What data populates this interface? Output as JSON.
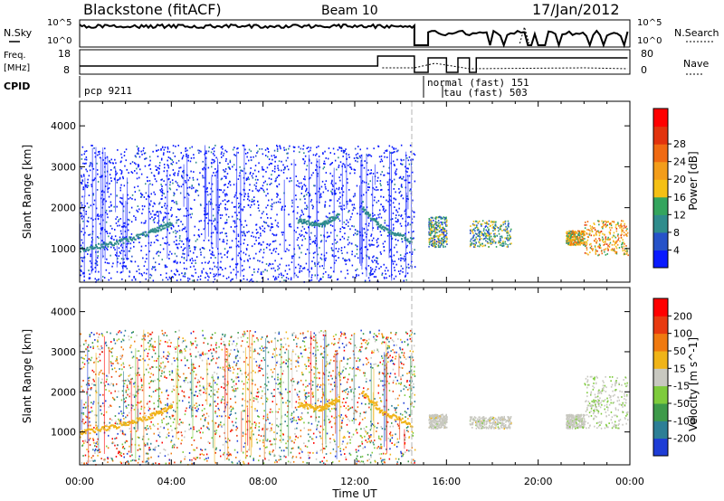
{
  "header": {
    "station": "Blackstone (fitACF)",
    "beam": "Beam 10",
    "date": "17/Jan/2012"
  },
  "params": {
    "nsky_label": "N.Sky",
    "nsky_ticks": [
      "10^5",
      "10^0"
    ],
    "nsearch_label": "N.Search",
    "nsearch_ticks": [
      "10^5",
      "10^0"
    ],
    "freq_label_1": "Freq.",
    "freq_label_2": "[MHz]",
    "freq_ticks": [
      "18",
      "8"
    ],
    "nave_label": "Nave",
    "nave_ticks": [
      "80",
      "0"
    ],
    "cpid_label": "CPID",
    "cpid_entries": [
      "pcp 9211",
      "normal (fast) 151",
      "tau (fast) 503"
    ]
  },
  "axes": {
    "xlabel": "Time UT",
    "x_ticks": [
      "00:00",
      "04:00",
      "08:00",
      "12:00",
      "16:00",
      "20:00",
      "00:00"
    ],
    "ylabel": "Slant Range [km]",
    "y_ticks": [
      "1000",
      "2000",
      "3000",
      "4000"
    ]
  },
  "colorbars": {
    "power": {
      "title": "Power [dB]",
      "labels": [
        "4",
        "8",
        "12",
        "16",
        "20",
        "24",
        "28"
      ],
      "colors": [
        "#0a1bff",
        "#2652c8",
        "#2f8c8c",
        "#34a55e",
        "#f4c015",
        "#f39d1a",
        "#f06a12",
        "#e2330d",
        "#ff0000"
      ]
    },
    "velocity": {
      "title": "Velocity [m s^-1]",
      "labels": [
        "200",
        "100",
        "50",
        "15",
        "-15",
        "-50",
        "-100",
        "-200"
      ],
      "colors": [
        "#1e3dd6",
        "#2d7f96",
        "#3e9a4a",
        "#7ecb3c",
        "#c8c8c0",
        "#f0b418",
        "#f07a10",
        "#e83a10",
        "#ff0000"
      ]
    }
  },
  "chart_data": [
    {
      "type": "heatmap",
      "title": "Power [dB]",
      "xlabel": "Time UT",
      "ylabel": "Slant Range [km]",
      "xlim": [
        0,
        24
      ],
      "ylim": [
        180,
        4600
      ],
      "clim": [
        0,
        30
      ],
      "regions": [
        {
          "t": [
            0.0,
            14.6
          ],
          "r": [
            200,
            3550
          ],
          "value": 4,
          "density": "sparse"
        },
        {
          "t": [
            15.2,
            16.0
          ],
          "r": [
            1050,
            1800
          ],
          "value": 10
        },
        {
          "t": [
            17.0,
            18.8
          ],
          "r": [
            1050,
            1700
          ],
          "value": 10
        },
        {
          "t": [
            21.2,
            22.0
          ],
          "r": [
            1100,
            1450
          ],
          "value": 16
        },
        {
          "t": [
            22.0,
            23.9
          ],
          "r": [
            850,
            1700
          ],
          "value": 18
        }
      ],
      "traces": [
        {
          "t": [
            0.0,
            1.5,
            3.0,
            4.0
          ],
          "r": [
            1000,
            1150,
            1400,
            1650
          ]
        },
        {
          "t": [
            9.5,
            10.5,
            11.3
          ],
          "r": [
            1700,
            1600,
            1850
          ]
        },
        {
          "t": [
            12.3,
            13.2,
            14.5
          ],
          "r": [
            2000,
            1500,
            1200
          ]
        }
      ]
    },
    {
      "type": "heatmap",
      "title": "Velocity [m s^-1]",
      "xlabel": "Time UT",
      "ylabel": "Slant Range [km]",
      "xlim": [
        0,
        24
      ],
      "ylim": [
        180,
        4600
      ],
      "clim": [
        -250,
        250
      ],
      "regions": [
        {
          "t": [
            0.0,
            14.6
          ],
          "r": [
            200,
            3550
          ],
          "value": 0,
          "density": "sparse"
        },
        {
          "t": [
            15.2,
            16.0
          ],
          "r": [
            1100,
            1450
          ],
          "value": 0
        },
        {
          "t": [
            17.0,
            18.8
          ],
          "r": [
            1100,
            1400
          ],
          "value": 0
        },
        {
          "t": [
            21.2,
            22.0
          ],
          "r": [
            1100,
            1450
          ],
          "value": -5
        },
        {
          "t": [
            22.0,
            23.9
          ],
          "r": [
            1100,
            2400
          ],
          "value": -20
        }
      ],
      "traces": [
        {
          "t": [
            0.0,
            1.5,
            3.0,
            4.0
          ],
          "r": [
            1000,
            1150,
            1400,
            1650
          ]
        },
        {
          "t": [
            9.5,
            10.5,
            11.3
          ],
          "r": [
            1700,
            1600,
            1850
          ]
        },
        {
          "t": [
            12.3,
            13.2,
            14.5
          ],
          "r": [
            2000,
            1500,
            1200
          ]
        }
      ]
    }
  ]
}
